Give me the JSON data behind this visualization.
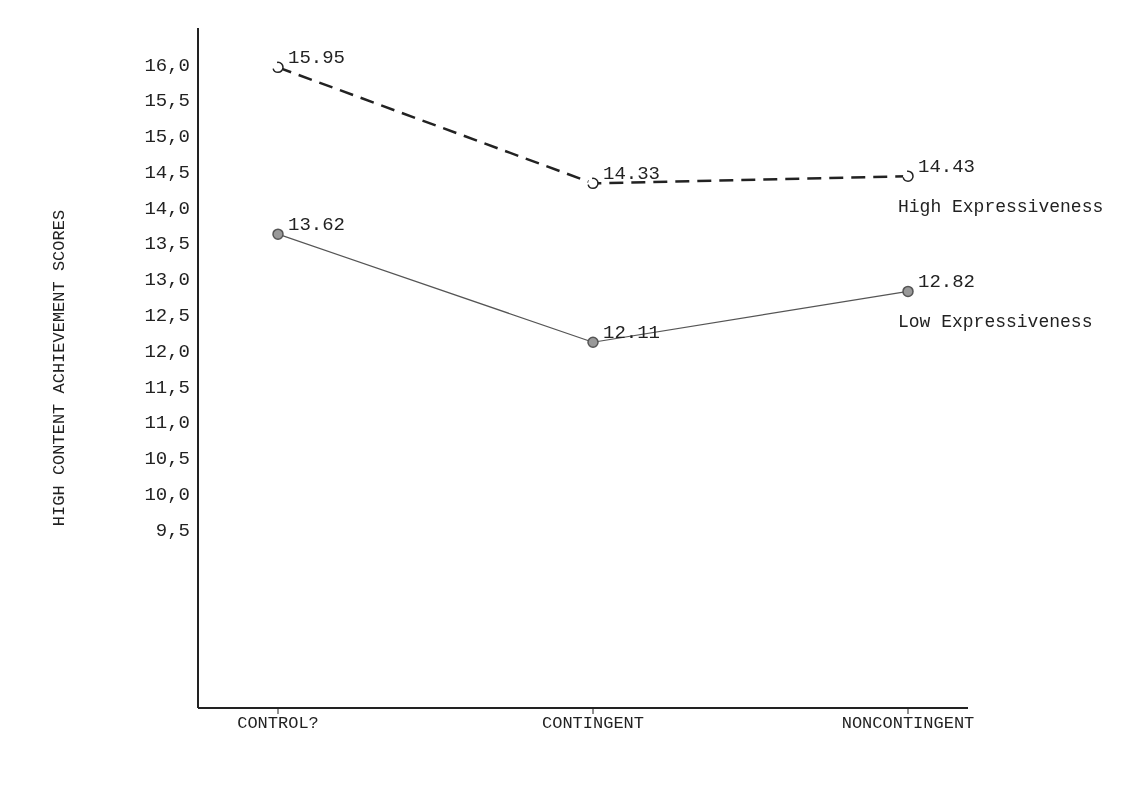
{
  "chart_data": {
    "type": "line",
    "ylabel": "HIGH CONTENT ACHIEVEMENT SCORES",
    "categories": [
      "CONTROL?",
      "CONTINGENT",
      "NONCONTINGENT"
    ],
    "series": [
      {
        "name": "High Expressiveness",
        "color": "#222222",
        "values": [
          15.95,
          14.33,
          14.43
        ],
        "line_style": "dashed"
      },
      {
        "name": "Low Expressiveness",
        "color": "#555555",
        "values": [
          13.62,
          12.11,
          12.82
        ],
        "line_style": "solid"
      }
    ],
    "ylim": [
      7,
      16.5
    ],
    "yticks": [
      {
        "value": 9.5,
        "label": "9,5"
      },
      {
        "value": 10,
        "label": "10,0"
      },
      {
        "value": 10.5,
        "label": "10,5"
      },
      {
        "value": 11,
        "label": "11,0"
      },
      {
        "value": 11.5,
        "label": "11,5"
      },
      {
        "value": 12,
        "label": "12,0"
      },
      {
        "value": 12.5,
        "label": "12,5"
      },
      {
        "value": 13,
        "label": "13,0"
      },
      {
        "value": 13.5,
        "label": "13,5"
      },
      {
        "value": 14,
        "label": "14,0"
      },
      {
        "value": 14.5,
        "label": "14,5"
      },
      {
        "value": 15,
        "label": "15,0"
      },
      {
        "value": 15.5,
        "label": "15,5"
      },
      {
        "value": 16,
        "label": "16,0"
      }
    ],
    "data_labels": true,
    "marker": "circle",
    "grid": false,
    "legend": false
  }
}
